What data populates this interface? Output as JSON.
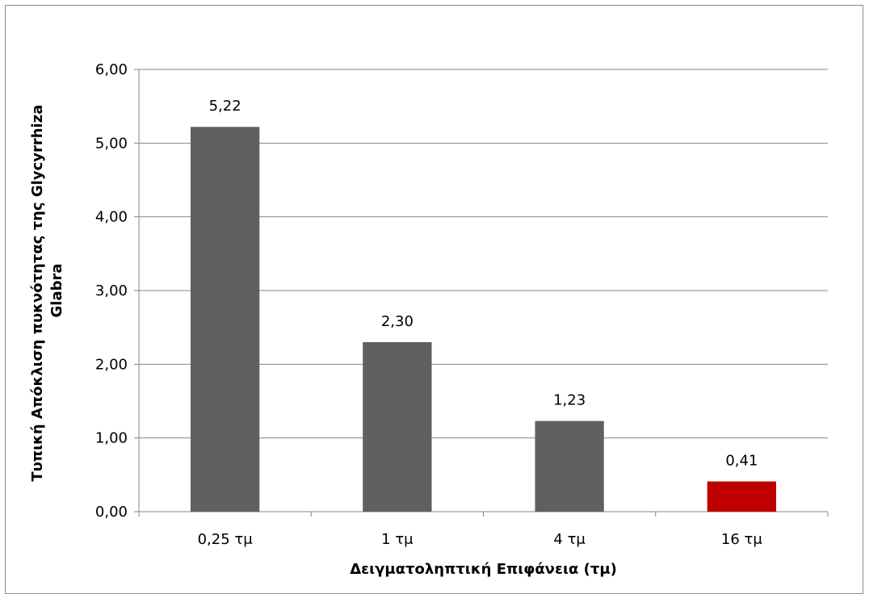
{
  "chart_data": {
    "type": "bar",
    "title": "",
    "xlabel": "Δειγματοληπτική Επιφάνεια (τμ)",
    "ylabel_line1": "Τυπική Απόκλιση πυκνότητας της Glycyrrhiza",
    "ylabel_line2": "Glabra",
    "categories": [
      "0,25 τμ",
      "1 τμ",
      "4 τμ",
      "16 τμ"
    ],
    "values": [
      5.22,
      2.3,
      1.23,
      0.41
    ],
    "data_labels": [
      "5,22",
      "2,30",
      "1,23",
      "0,41"
    ],
    "bar_colors": [
      "#606060",
      "#606060",
      "#606060",
      "#c00000"
    ],
    "ylim": [
      0,
      6
    ],
    "yticks": [
      0,
      1,
      2,
      3,
      4,
      5,
      6
    ],
    "ytick_labels": [
      "0,00",
      "1,00",
      "2,00",
      "3,00",
      "4,00",
      "5,00",
      "6,00"
    ],
    "grid": true,
    "legend": "none"
  }
}
